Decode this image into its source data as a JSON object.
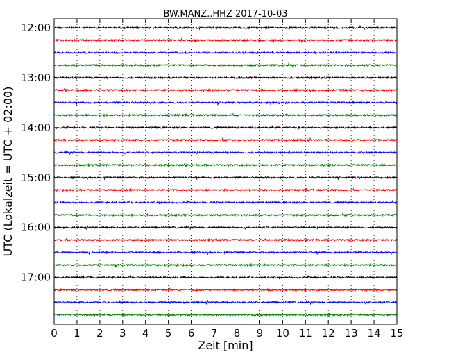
{
  "chart_data": {
    "type": "line",
    "title": "BW.MANZ..HHZ 2017-10-03",
    "xlabel": "Zeit  [min]",
    "ylabel": "UTC (Lokalzeit = UTC + 02:00)",
    "xlim": [
      0,
      15
    ],
    "xticks": [
      "0",
      "1",
      "2",
      "3",
      "4",
      "5",
      "6",
      "7",
      "8",
      "9",
      "10",
      "11",
      "12",
      "13",
      "14",
      "15"
    ],
    "y_ticks": [
      "12:00",
      "13:00",
      "14:00",
      "15:00",
      "16:00",
      "17:00"
    ],
    "trace_start_times": [
      "12:00",
      "12:15",
      "12:30",
      "12:45",
      "13:00",
      "13:15",
      "13:30",
      "13:45",
      "14:00",
      "14:15",
      "14:30",
      "14:45",
      "15:00",
      "15:15",
      "15:30",
      "15:45",
      "16:00",
      "16:15",
      "16:30",
      "16:45",
      "17:00",
      "17:15",
      "17:30",
      "17:45"
    ],
    "trace_colors": [
      "#000000",
      "#ff0000",
      "#0000ff",
      "#007f00"
    ],
    "grid": "vertical dotted",
    "series_description": "seismogram traces, 15 min each, stacked by start time, low-amplitude noise"
  }
}
